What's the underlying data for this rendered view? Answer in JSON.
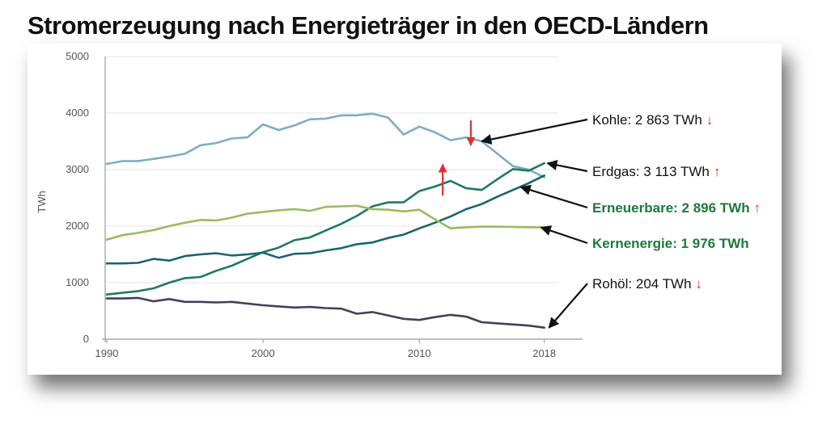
{
  "title": "Stromerzeugung nach Energieträger in den OECD-Ländern",
  "chart_data": {
    "type": "line",
    "ylabel": "TWh",
    "xlim": [
      1990,
      2019
    ],
    "ylim": [
      0,
      5000
    ],
    "xticks": [
      "1990",
      "2000",
      "2010",
      "2018"
    ],
    "yticks": [
      "0",
      "1000",
      "2000",
      "3000",
      "4000",
      "5000"
    ],
    "grid": true,
    "x": [
      1990,
      1991,
      1992,
      1993,
      1994,
      1995,
      1996,
      1997,
      1998,
      1999,
      2000,
      2001,
      2002,
      2003,
      2004,
      2005,
      2006,
      2007,
      2008,
      2009,
      2010,
      2011,
      2012,
      2013,
      2014,
      2015,
      2016,
      2017,
      2018
    ],
    "series": [
      {
        "key": "kohle",
        "color": "#7eacc6",
        "values": [
          3100,
          3150,
          3150,
          3190,
          3230,
          3280,
          3430,
          3470,
          3550,
          3570,
          3800,
          3700,
          3780,
          3890,
          3900,
          3960,
          3960,
          3990,
          3920,
          3620,
          3760,
          3660,
          3520,
          3570,
          3500,
          3280,
          3060,
          3000,
          2863
        ]
      },
      {
        "key": "erdgas",
        "color": "#1e7a5e",
        "values": [
          790,
          820,
          850,
          900,
          1000,
          1080,
          1100,
          1210,
          1300,
          1420,
          1540,
          1620,
          1750,
          1800,
          1920,
          2040,
          2180,
          2350,
          2420,
          2420,
          2620,
          2700,
          2800,
          2670,
          2640,
          2830,
          3010,
          2980,
          3113
        ]
      },
      {
        "key": "erneuerbare",
        "color": "#1b6372",
        "values": [
          1340,
          1340,
          1350,
          1420,
          1390,
          1470,
          1500,
          1520,
          1480,
          1500,
          1530,
          1440,
          1510,
          1520,
          1570,
          1610,
          1680,
          1710,
          1790,
          1850,
          1960,
          2060,
          2170,
          2300,
          2390,
          2520,
          2640,
          2760,
          2896
        ]
      },
      {
        "key": "kernenergie",
        "color": "#9dba5e",
        "values": [
          1760,
          1840,
          1880,
          1930,
          2000,
          2060,
          2110,
          2100,
          2150,
          2220,
          2250,
          2280,
          2300,
          2270,
          2340,
          2350,
          2360,
          2300,
          2290,
          2260,
          2290,
          2120,
          1960,
          1980,
          1990,
          1990,
          1985,
          1980,
          1976
        ]
      },
      {
        "key": "rohoel",
        "color": "#483d5c",
        "values": [
          720,
          720,
          730,
          670,
          710,
          660,
          660,
          650,
          660,
          630,
          600,
          580,
          560,
          570,
          550,
          540,
          450,
          480,
          420,
          360,
          340,
          390,
          430,
          400,
          300,
          280,
          260,
          240,
          204
        ]
      }
    ],
    "annotations": [
      {
        "key": "kohle",
        "name": "Kohle",
        "value": "2 863 TWh",
        "trend": "↓",
        "color": "#111111",
        "bold": false
      },
      {
        "key": "erdgas",
        "name": "Erdgas",
        "value": "3 113 TWh",
        "trend": "↑",
        "color": "#111111",
        "bold": false
      },
      {
        "key": "erneuerbare",
        "name": "Erneuerbare",
        "value": "2 896 TWh",
        "trend": "↑",
        "color": "#1a7a3a",
        "bold": true
      },
      {
        "key": "kernenergie",
        "name": "Kernenergie",
        "value": "1 976 TWh",
        "trend": "",
        "color": "#1a7a3a",
        "bold": true
      },
      {
        "key": "rohoel",
        "name": "Rohöl",
        "value": "204 TWh",
        "trend": "↓",
        "color": "#111111",
        "bold": false
      }
    ],
    "trend_color": "#e03030"
  }
}
